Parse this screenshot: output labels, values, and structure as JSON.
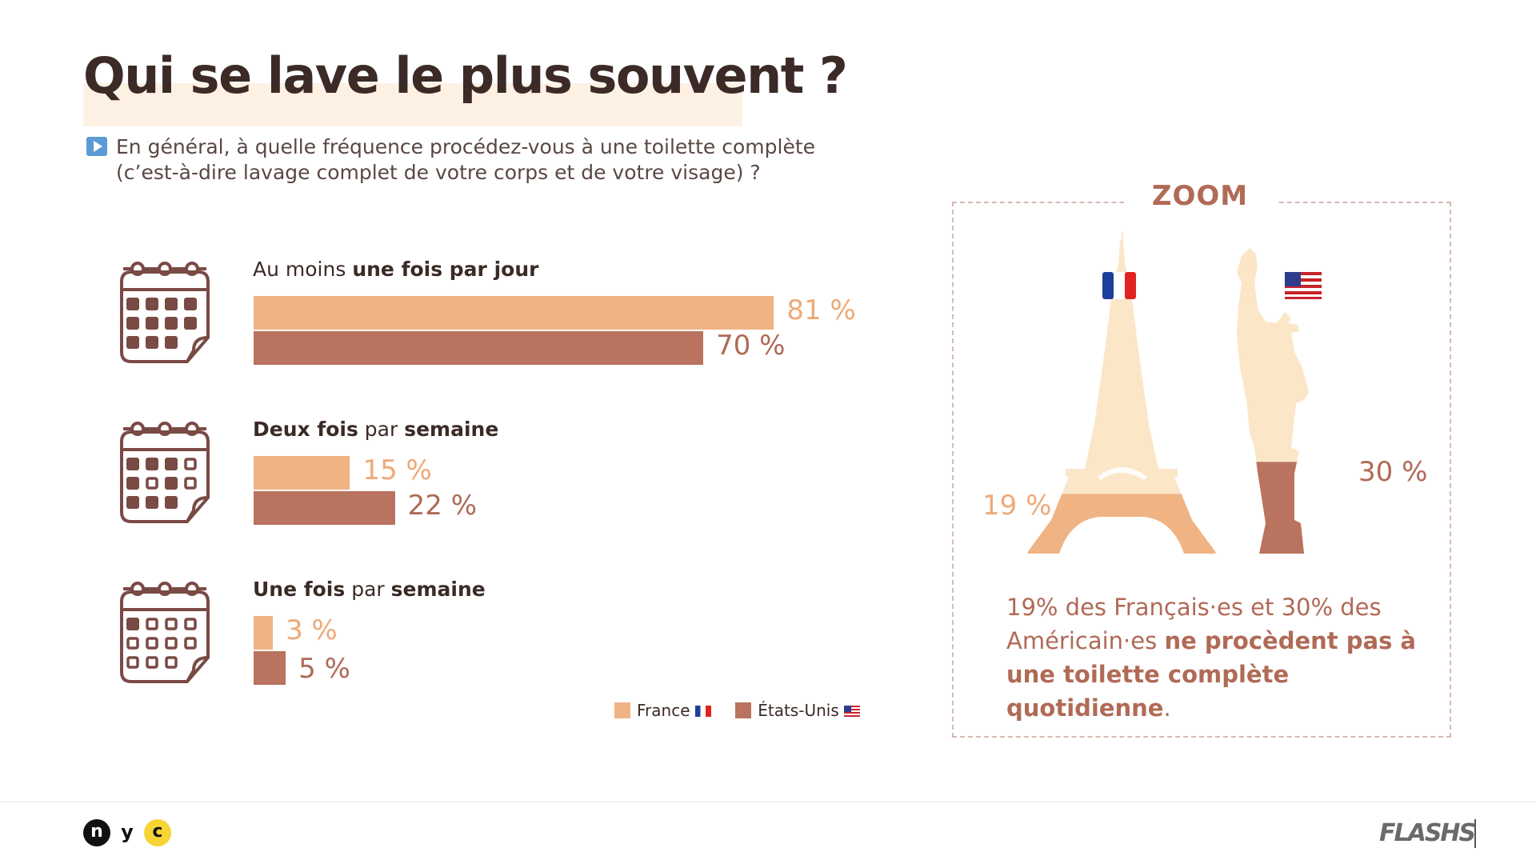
{
  "title": "Qui se lave le plus souvent ?",
  "question_line1": "En général, à quelle fréquence procédez-vous à une toilette complète",
  "question_line2": "(c’est-à-dire lavage complet de votre corps et de votre visage) ?",
  "categories": [
    {
      "label_pre": "Au moins ",
      "label_bold": "une fois par jour",
      "label_mid": "",
      "label_bold2": "",
      "fr_label": "81 %",
      "us_label": "70 %"
    },
    {
      "label_pre": "",
      "label_bold": "Deux fois",
      "label_mid": " par ",
      "label_bold2": "semaine",
      "fr_label": "15 %",
      "us_label": "22 %"
    },
    {
      "label_pre": "",
      "label_bold": "Une fois",
      "label_mid": " par ",
      "label_bold2": "semaine",
      "fr_label": "3 %",
      "us_label": "5 %"
    }
  ],
  "legend": {
    "france": "France",
    "usa": "États-Unis"
  },
  "colors": {
    "france": "#f0b384",
    "usa": "#b9735e",
    "calendar": "#7a4a45",
    "title_bg": "#fdf1e4",
    "monument_light": "#fbe6c8"
  },
  "zoom": {
    "title": "ZOOM",
    "fr_pct": "19 %",
    "us_pct": "30 %",
    "text_1": "19% des Français·es et 30% des Américain·es ",
    "text_bold": "ne procèdent pas à une toilette complète quotidienne",
    "text_end": ".",
    "fr_value": 19,
    "us_value": 30,
    "fr_icon": "eiffel-tower-icon",
    "us_icon": "statue-of-liberty-icon"
  },
  "footer": {
    "logo_n": "n",
    "logo_y": "y",
    "logo_c": "c",
    "brand": "FLASHS"
  },
  "chart_data": {
    "type": "bar",
    "orientation": "horizontal",
    "categories": [
      "Au moins une fois par jour",
      "Deux fois par semaine",
      "Une fois par semaine"
    ],
    "series": [
      {
        "name": "France",
        "values": [
          81,
          15,
          3
        ]
      },
      {
        "name": "États-Unis",
        "values": [
          70,
          22,
          5
        ]
      }
    ],
    "unit": "%",
    "xlim": [
      0,
      100
    ],
    "legend_position": "bottom-right",
    "grid": false
  }
}
